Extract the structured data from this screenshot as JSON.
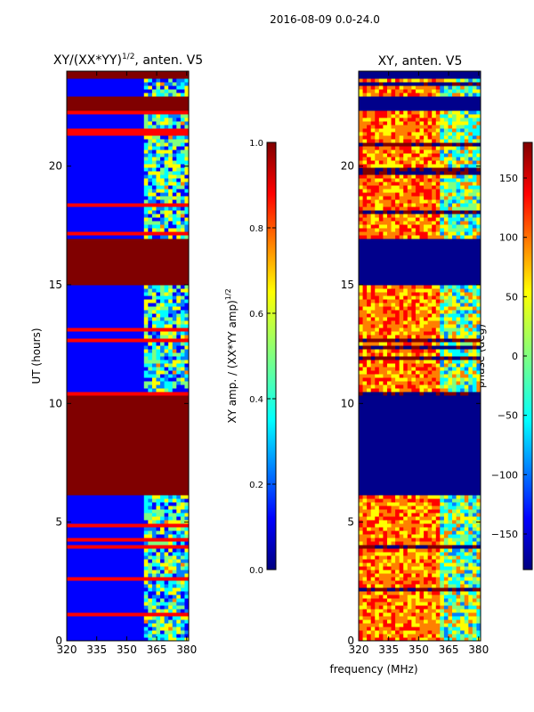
{
  "figure_title": "2016-08-09 0.0-24.0",
  "shared_xlabel": "frequency (MHz)",
  "colors": {
    "saturated": "#800000",
    "low": "#00008b",
    "jet": [
      "#000080",
      "#0000ff",
      "#0080ff",
      "#00ffff",
      "#80ff80",
      "#ffff00",
      "#ff8000",
      "#ff0000",
      "#800000"
    ]
  },
  "chart_data": [
    {
      "type": "heatmap",
      "title_main": "XY/(XX*YY)",
      "title_sup": "1/2",
      "title_tail": ", anten. V5",
      "xlabel": "frequency (MHz)",
      "ylabel": "UT (hours)",
      "xlim": [
        320,
        381
      ],
      "ylim": [
        0,
        24
      ],
      "xticks": [
        320,
        335,
        350,
        365,
        380
      ],
      "yticks": [
        0,
        5,
        10,
        15,
        20
      ],
      "saturated_blocks_hours": [
        [
          6.2,
          10.4
        ],
        [
          15.0,
          17.0
        ],
        [
          22.3,
          23.0
        ],
        [
          23.7,
          24.0
        ]
      ],
      "active_band_mhz": [
        359,
        381
      ],
      "colorbar": {
        "label_main": "XY amp. / (XX*YY amp)",
        "label_sup": "1/2",
        "range": [
          0.0,
          1.0
        ],
        "ticks": [
          "0.0",
          "0.2",
          "0.4",
          "0.6",
          "0.8",
          "1.0"
        ]
      }
    },
    {
      "type": "heatmap",
      "title": "XY, anten. V5",
      "xlabel": "frequency (MHz)",
      "ylabel": "",
      "xlim": [
        320,
        381
      ],
      "ylim": [
        0,
        24
      ],
      "xticks": [
        320,
        335,
        350,
        365,
        380
      ],
      "yticks": [
        0,
        5,
        10,
        15,
        20
      ],
      "flagged_blocks_hours": [
        [
          6.2,
          10.4
        ],
        [
          15.0,
          17.0
        ],
        [
          22.3,
          23.0
        ],
        [
          23.7,
          24.0
        ]
      ],
      "colorbar": {
        "label": "phase (deg)",
        "range": [
          -180,
          180
        ],
        "ticks": [
          "150",
          "100",
          "50",
          "0",
          "−50",
          "−100",
          "−150"
        ]
      }
    }
  ]
}
